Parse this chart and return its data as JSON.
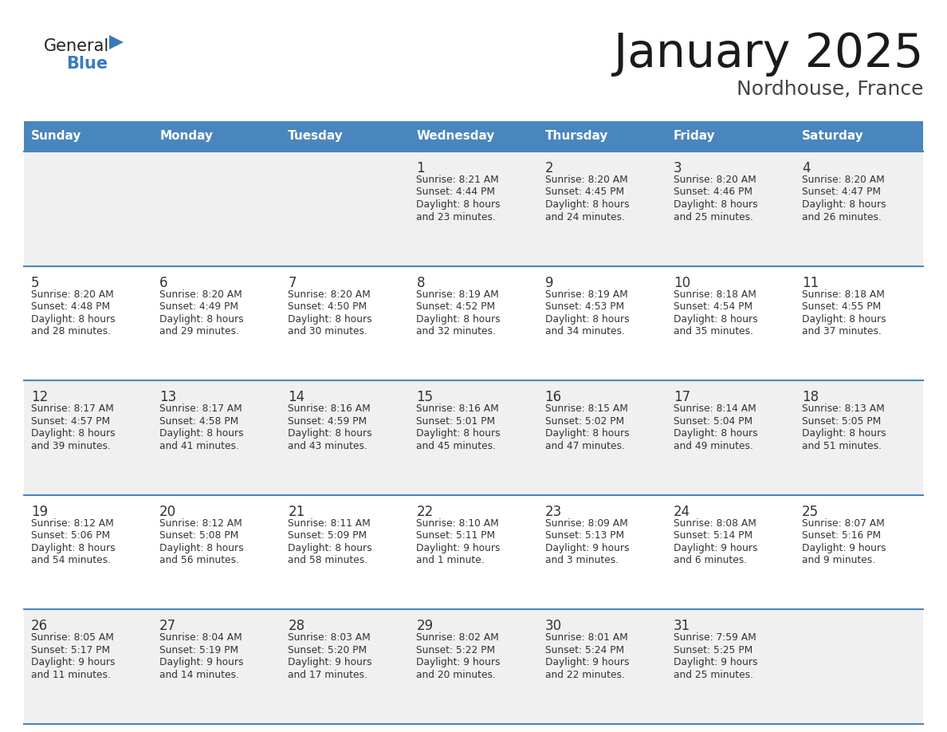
{
  "title": "January 2025",
  "subtitle": "Nordhouse, France",
  "header_color": "#4a86be",
  "header_text_color": "#ffffff",
  "cell_bg_even": "#f0f0f0",
  "cell_bg_odd": "#ffffff",
  "day_names": [
    "Sunday",
    "Monday",
    "Tuesday",
    "Wednesday",
    "Thursday",
    "Friday",
    "Saturday"
  ],
  "text_color": "#333333",
  "line_color": "#4a86be",
  "days": [
    {
      "day": 1,
      "col": 3,
      "row": 0,
      "sunrise": "8:21 AM",
      "sunset": "4:44 PM",
      "daylight_h": "8 hours",
      "daylight_m": "and 23 minutes."
    },
    {
      "day": 2,
      "col": 4,
      "row": 0,
      "sunrise": "8:20 AM",
      "sunset": "4:45 PM",
      "daylight_h": "8 hours",
      "daylight_m": "and 24 minutes."
    },
    {
      "day": 3,
      "col": 5,
      "row": 0,
      "sunrise": "8:20 AM",
      "sunset": "4:46 PM",
      "daylight_h": "8 hours",
      "daylight_m": "and 25 minutes."
    },
    {
      "day": 4,
      "col": 6,
      "row": 0,
      "sunrise": "8:20 AM",
      "sunset": "4:47 PM",
      "daylight_h": "8 hours",
      "daylight_m": "and 26 minutes."
    },
    {
      "day": 5,
      "col": 0,
      "row": 1,
      "sunrise": "8:20 AM",
      "sunset": "4:48 PM",
      "daylight_h": "8 hours",
      "daylight_m": "and 28 minutes."
    },
    {
      "day": 6,
      "col": 1,
      "row": 1,
      "sunrise": "8:20 AM",
      "sunset": "4:49 PM",
      "daylight_h": "8 hours",
      "daylight_m": "and 29 minutes."
    },
    {
      "day": 7,
      "col": 2,
      "row": 1,
      "sunrise": "8:20 AM",
      "sunset": "4:50 PM",
      "daylight_h": "8 hours",
      "daylight_m": "and 30 minutes."
    },
    {
      "day": 8,
      "col": 3,
      "row": 1,
      "sunrise": "8:19 AM",
      "sunset": "4:52 PM",
      "daylight_h": "8 hours",
      "daylight_m": "and 32 minutes."
    },
    {
      "day": 9,
      "col": 4,
      "row": 1,
      "sunrise": "8:19 AM",
      "sunset": "4:53 PM",
      "daylight_h": "8 hours",
      "daylight_m": "and 34 minutes."
    },
    {
      "day": 10,
      "col": 5,
      "row": 1,
      "sunrise": "8:18 AM",
      "sunset": "4:54 PM",
      "daylight_h": "8 hours",
      "daylight_m": "and 35 minutes."
    },
    {
      "day": 11,
      "col": 6,
      "row": 1,
      "sunrise": "8:18 AM",
      "sunset": "4:55 PM",
      "daylight_h": "8 hours",
      "daylight_m": "and 37 minutes."
    },
    {
      "day": 12,
      "col": 0,
      "row": 2,
      "sunrise": "8:17 AM",
      "sunset": "4:57 PM",
      "daylight_h": "8 hours",
      "daylight_m": "and 39 minutes."
    },
    {
      "day": 13,
      "col": 1,
      "row": 2,
      "sunrise": "8:17 AM",
      "sunset": "4:58 PM",
      "daylight_h": "8 hours",
      "daylight_m": "and 41 minutes."
    },
    {
      "day": 14,
      "col": 2,
      "row": 2,
      "sunrise": "8:16 AM",
      "sunset": "4:59 PM",
      "daylight_h": "8 hours",
      "daylight_m": "and 43 minutes."
    },
    {
      "day": 15,
      "col": 3,
      "row": 2,
      "sunrise": "8:16 AM",
      "sunset": "5:01 PM",
      "daylight_h": "8 hours",
      "daylight_m": "and 45 minutes."
    },
    {
      "day": 16,
      "col": 4,
      "row": 2,
      "sunrise": "8:15 AM",
      "sunset": "5:02 PM",
      "daylight_h": "8 hours",
      "daylight_m": "and 47 minutes."
    },
    {
      "day": 17,
      "col": 5,
      "row": 2,
      "sunrise": "8:14 AM",
      "sunset": "5:04 PM",
      "daylight_h": "8 hours",
      "daylight_m": "and 49 minutes."
    },
    {
      "day": 18,
      "col": 6,
      "row": 2,
      "sunrise": "8:13 AM",
      "sunset": "5:05 PM",
      "daylight_h": "8 hours",
      "daylight_m": "and 51 minutes."
    },
    {
      "day": 19,
      "col": 0,
      "row": 3,
      "sunrise": "8:12 AM",
      "sunset": "5:06 PM",
      "daylight_h": "8 hours",
      "daylight_m": "and 54 minutes."
    },
    {
      "day": 20,
      "col": 1,
      "row": 3,
      "sunrise": "8:12 AM",
      "sunset": "5:08 PM",
      "daylight_h": "8 hours",
      "daylight_m": "and 56 minutes."
    },
    {
      "day": 21,
      "col": 2,
      "row": 3,
      "sunrise": "8:11 AM",
      "sunset": "5:09 PM",
      "daylight_h": "8 hours",
      "daylight_m": "and 58 minutes."
    },
    {
      "day": 22,
      "col": 3,
      "row": 3,
      "sunrise": "8:10 AM",
      "sunset": "5:11 PM",
      "daylight_h": "9 hours",
      "daylight_m": "and 1 minute."
    },
    {
      "day": 23,
      "col": 4,
      "row": 3,
      "sunrise": "8:09 AM",
      "sunset": "5:13 PM",
      "daylight_h": "9 hours",
      "daylight_m": "and 3 minutes."
    },
    {
      "day": 24,
      "col": 5,
      "row": 3,
      "sunrise": "8:08 AM",
      "sunset": "5:14 PM",
      "daylight_h": "9 hours",
      "daylight_m": "and 6 minutes."
    },
    {
      "day": 25,
      "col": 6,
      "row": 3,
      "sunrise": "8:07 AM",
      "sunset": "5:16 PM",
      "daylight_h": "9 hours",
      "daylight_m": "and 9 minutes."
    },
    {
      "day": 26,
      "col": 0,
      "row": 4,
      "sunrise": "8:05 AM",
      "sunset": "5:17 PM",
      "daylight_h": "9 hours",
      "daylight_m": "and 11 minutes."
    },
    {
      "day": 27,
      "col": 1,
      "row": 4,
      "sunrise": "8:04 AM",
      "sunset": "5:19 PM",
      "daylight_h": "9 hours",
      "daylight_m": "and 14 minutes."
    },
    {
      "day": 28,
      "col": 2,
      "row": 4,
      "sunrise": "8:03 AM",
      "sunset": "5:20 PM",
      "daylight_h": "9 hours",
      "daylight_m": "and 17 minutes."
    },
    {
      "day": 29,
      "col": 3,
      "row": 4,
      "sunrise": "8:02 AM",
      "sunset": "5:22 PM",
      "daylight_h": "9 hours",
      "daylight_m": "and 20 minutes."
    },
    {
      "day": 30,
      "col": 4,
      "row": 4,
      "sunrise": "8:01 AM",
      "sunset": "5:24 PM",
      "daylight_h": "9 hours",
      "daylight_m": "and 22 minutes."
    },
    {
      "day": 31,
      "col": 5,
      "row": 4,
      "sunrise": "7:59 AM",
      "sunset": "5:25 PM",
      "daylight_h": "9 hours",
      "daylight_m": "and 25 minutes."
    }
  ],
  "logo_general_color": "#222222",
  "logo_blue_color": "#3a7abf",
  "logo_triangle_color": "#3a7abf"
}
